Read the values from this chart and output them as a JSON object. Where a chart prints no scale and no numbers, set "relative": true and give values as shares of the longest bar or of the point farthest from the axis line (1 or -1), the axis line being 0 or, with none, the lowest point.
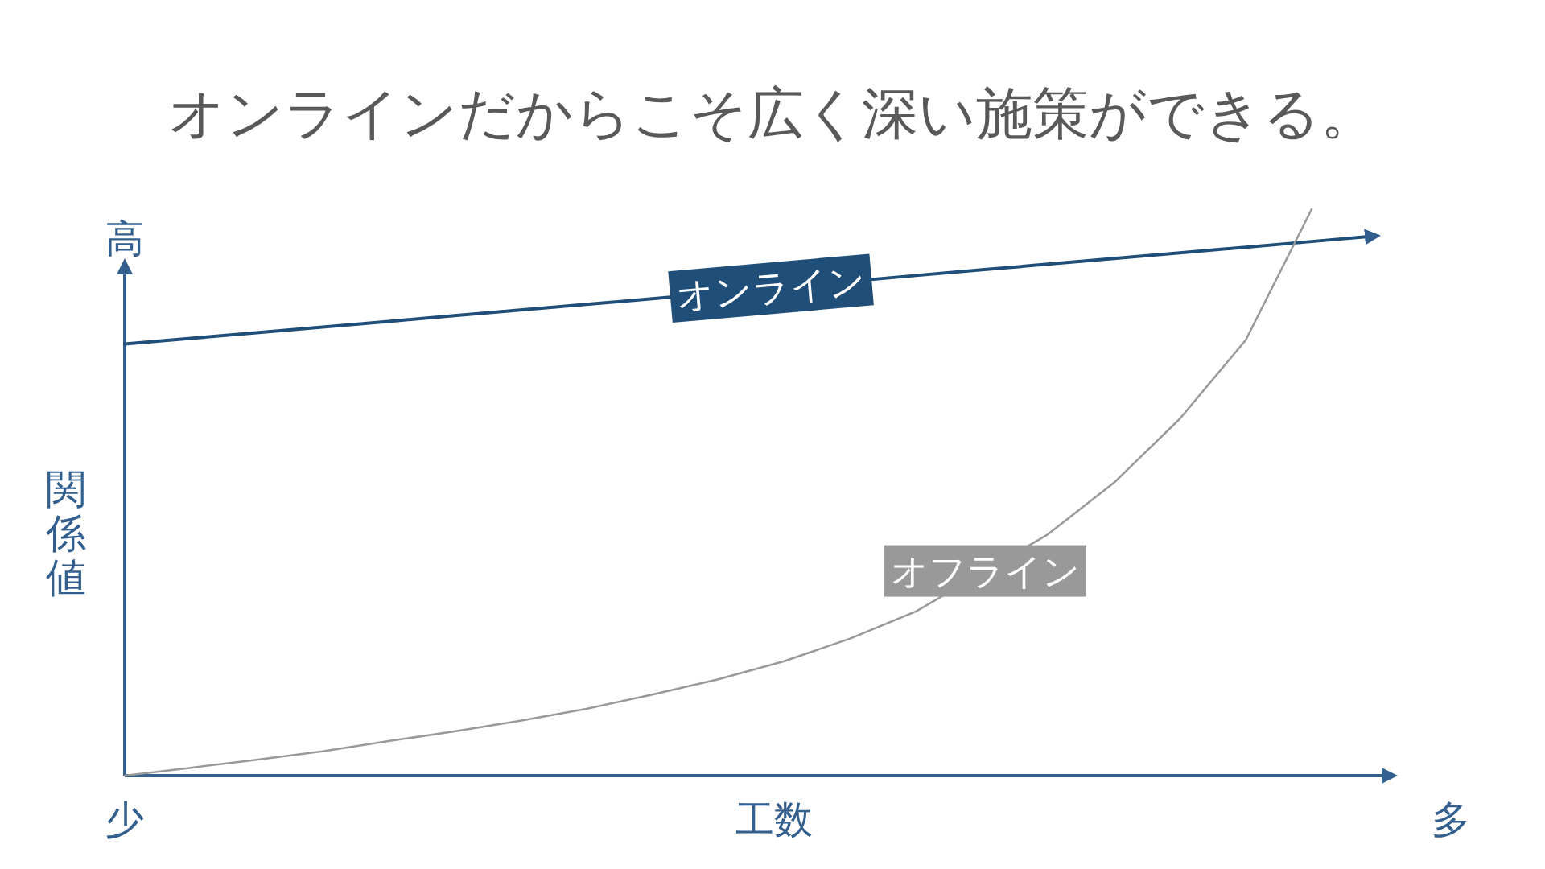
{
  "chart_data": {
    "type": "line",
    "title": "オンラインだからこそ広く深い施策ができる。",
    "xlabel": "工数",
    "ylabel": "関係値",
    "relative": true,
    "grid": false,
    "legend": false,
    "marker": "none",
    "line_style": "solid",
    "annotations": [
      "高",
      "少",
      "多"
    ],
    "categories": [
      null,
      null,
      null,
      null,
      null,
      null,
      null,
      null,
      null,
      null,
      null,
      null,
      null,
      null,
      null,
      null,
      null,
      null,
      null,
      null
    ],
    "series": [
      {
        "name": "オンライン",
        "color": "#1f4e79",
        "values": [
          0.762,
          0.772,
          0.782,
          0.792,
          0.802,
          0.812,
          0.822,
          0.832,
          0.842,
          null,
          null,
          null,
          0.883,
          0.893,
          0.903,
          0.913,
          0.923,
          0.933,
          0.943,
          0.953
        ]
      },
      {
        "name": "オフライン",
        "color": "#999999",
        "values": [
          0,
          0.014,
          0.028,
          0.043,
          0.061,
          0.078,
          0.097,
          0.118,
          0.143,
          0.17,
          0.202,
          0.242,
          0.29,
          null,
          0.426,
          0.517,
          0.63,
          0.769,
          1.0,
          null
        ]
      }
    ]
  }
}
